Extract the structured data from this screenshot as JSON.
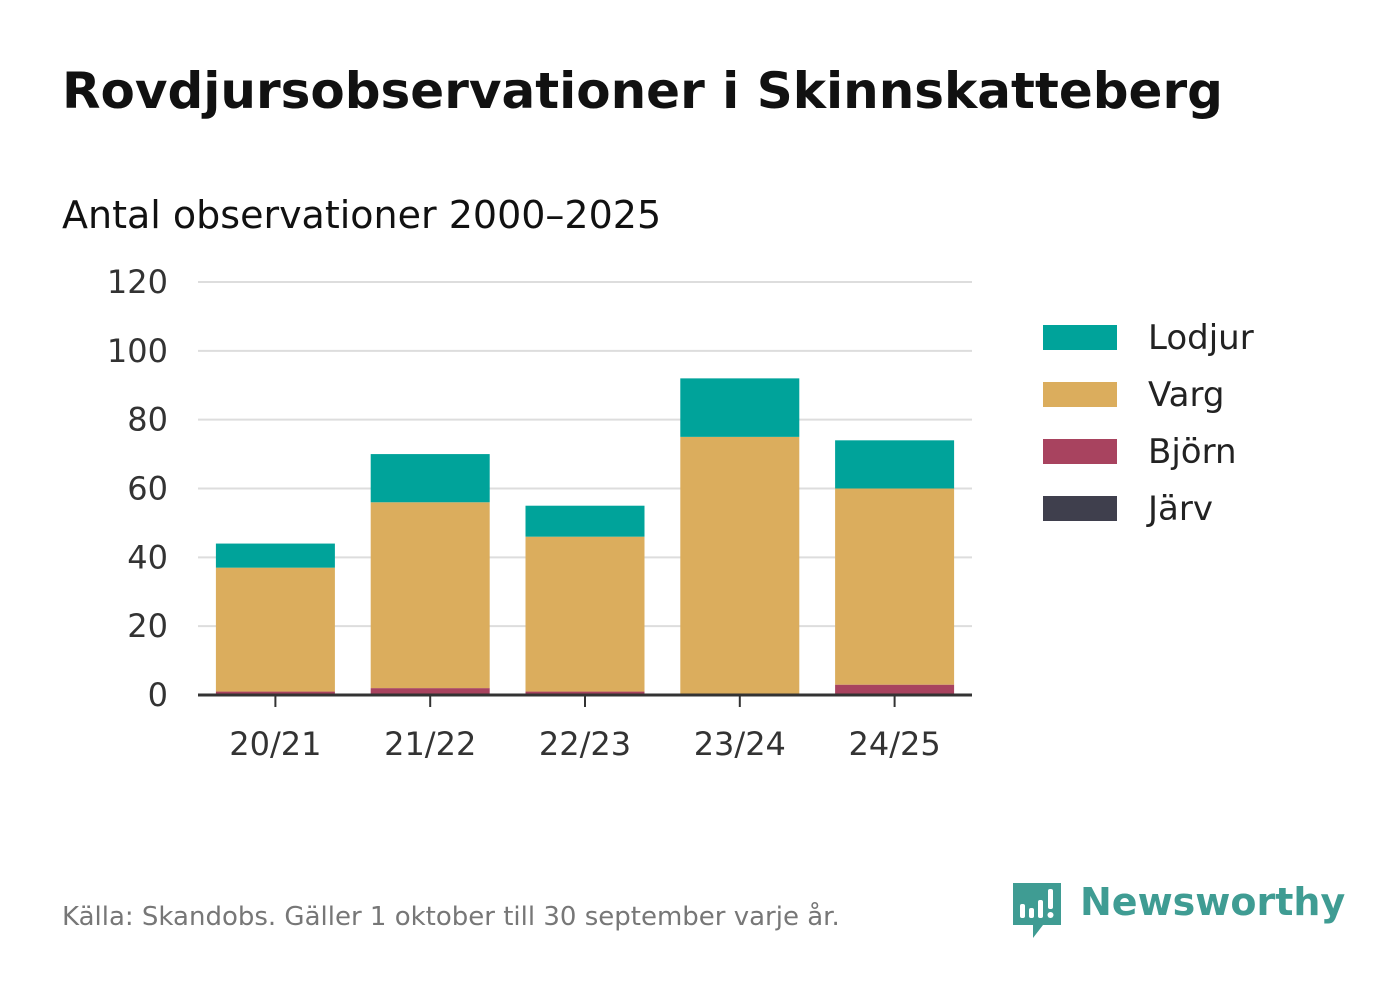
{
  "title": "Rovdjursobservationer i Skinnskatteberg",
  "subtitle": "Antal observationer 2000–2025",
  "source": "Källa: Skandobs. Gäller 1 oktober till 30 september varje år.",
  "brand": {
    "name": "Newsworthy",
    "icon": "newsworthy-logo-icon",
    "color": "#3f9c93"
  },
  "chart_data": {
    "type": "bar",
    "stacked": true,
    "title": "Rovdjursobservationer i Skinnskatteberg",
    "subtitle": "Antal observationer 2000–2025",
    "xlabel": "",
    "ylabel": "",
    "categories": [
      "20/21",
      "21/22",
      "22/23",
      "23/24",
      "24/25"
    ],
    "ylim": [
      0,
      120
    ],
    "yticks": [
      0,
      20,
      40,
      60,
      80,
      100,
      120
    ],
    "grid": true,
    "legend_position": "right",
    "series": [
      {
        "name": "Järv",
        "color": "#3f3f4d",
        "values": [
          0,
          0,
          0,
          0,
          0
        ]
      },
      {
        "name": "Björn",
        "color": "#a8435f",
        "values": [
          1,
          2,
          1,
          0,
          3
        ]
      },
      {
        "name": "Varg",
        "color": "#dbad5d",
        "values": [
          36,
          54,
          45,
          75,
          57
        ]
      },
      {
        "name": "Lodjur",
        "color": "#00a39a",
        "values": [
          7,
          14,
          9,
          17,
          14
        ]
      }
    ],
    "legend_order": [
      "Lodjur",
      "Varg",
      "Björn",
      "Järv"
    ]
  }
}
